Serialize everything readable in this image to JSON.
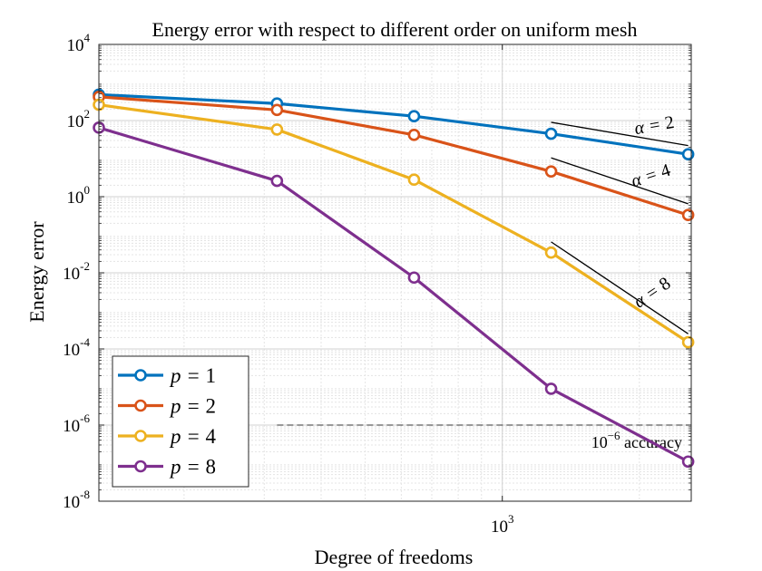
{
  "chart_data": {
    "type": "line",
    "title": "Energy error with respect to different order on uniform mesh",
    "xlabel": "Degree of freedoms",
    "ylabel": "Energy error",
    "xscale": "log",
    "yscale": "log",
    "xlim": [
      130,
      2600
    ],
    "ylim": [
      1e-08,
      10000
    ],
    "x": [
      130,
      320,
      640,
      1280,
      2560
    ],
    "xticks": [
      {
        "value": 1000,
        "base": "10",
        "exp": "3"
      }
    ],
    "yticks": [
      {
        "value": 1e-08,
        "base": "10",
        "exp": "-8"
      },
      {
        "value": 1e-06,
        "base": "10",
        "exp": "-6"
      },
      {
        "value": 0.0001,
        "base": "10",
        "exp": "-4"
      },
      {
        "value": 0.01,
        "base": "10",
        "exp": "-2"
      },
      {
        "value": 1,
        "base": "10",
        "exp": "0"
      },
      {
        "value": 100,
        "base": "10",
        "exp": "2"
      },
      {
        "value": 10000,
        "base": "10",
        "exp": "4"
      }
    ],
    "series": [
      {
        "name": "p = 1",
        "symbol": "p",
        "order": "1",
        "color": "#0072BD",
        "values": [
          480,
          280,
          130,
          45,
          13
        ]
      },
      {
        "name": "p = 2",
        "symbol": "p",
        "order": "2",
        "color": "#D95319",
        "values": [
          420,
          190,
          42,
          4.6,
          0.33
        ]
      },
      {
        "name": "p = 4",
        "symbol": "p",
        "order": "4",
        "color": "#EDB120",
        "values": [
          260,
          58,
          2.8,
          0.034,
          0.00015
        ]
      },
      {
        "name": "p = 8",
        "symbol": "p",
        "order": "8",
        "color": "#7E2F8E",
        "values": [
          65,
          2.6,
          0.0075,
          9e-06,
          1.1e-07
        ]
      }
    ],
    "reference_lines": [
      {
        "label": "α = 2",
        "symbol": "α",
        "value": "2",
        "x": [
          1280,
          2560
        ],
        "y": [
          90,
          22
        ]
      },
      {
        "label": "α = 4",
        "symbol": "α",
        "value": "4",
        "x": [
          1280,
          2560
        ],
        "y": [
          10.5,
          0.65
        ]
      },
      {
        "label": "α = 8",
        "symbol": "α",
        "value": "8",
        "x": [
          1280,
          2560
        ],
        "y": [
          0.065,
          0.00025
        ]
      }
    ],
    "accuracy_line": {
      "y": 1e-06,
      "x_start": 320,
      "label_base": "10",
      "label_exp": "−6",
      "label_text": "accuracy"
    },
    "grid": true,
    "legend_position": "bottom-left"
  }
}
